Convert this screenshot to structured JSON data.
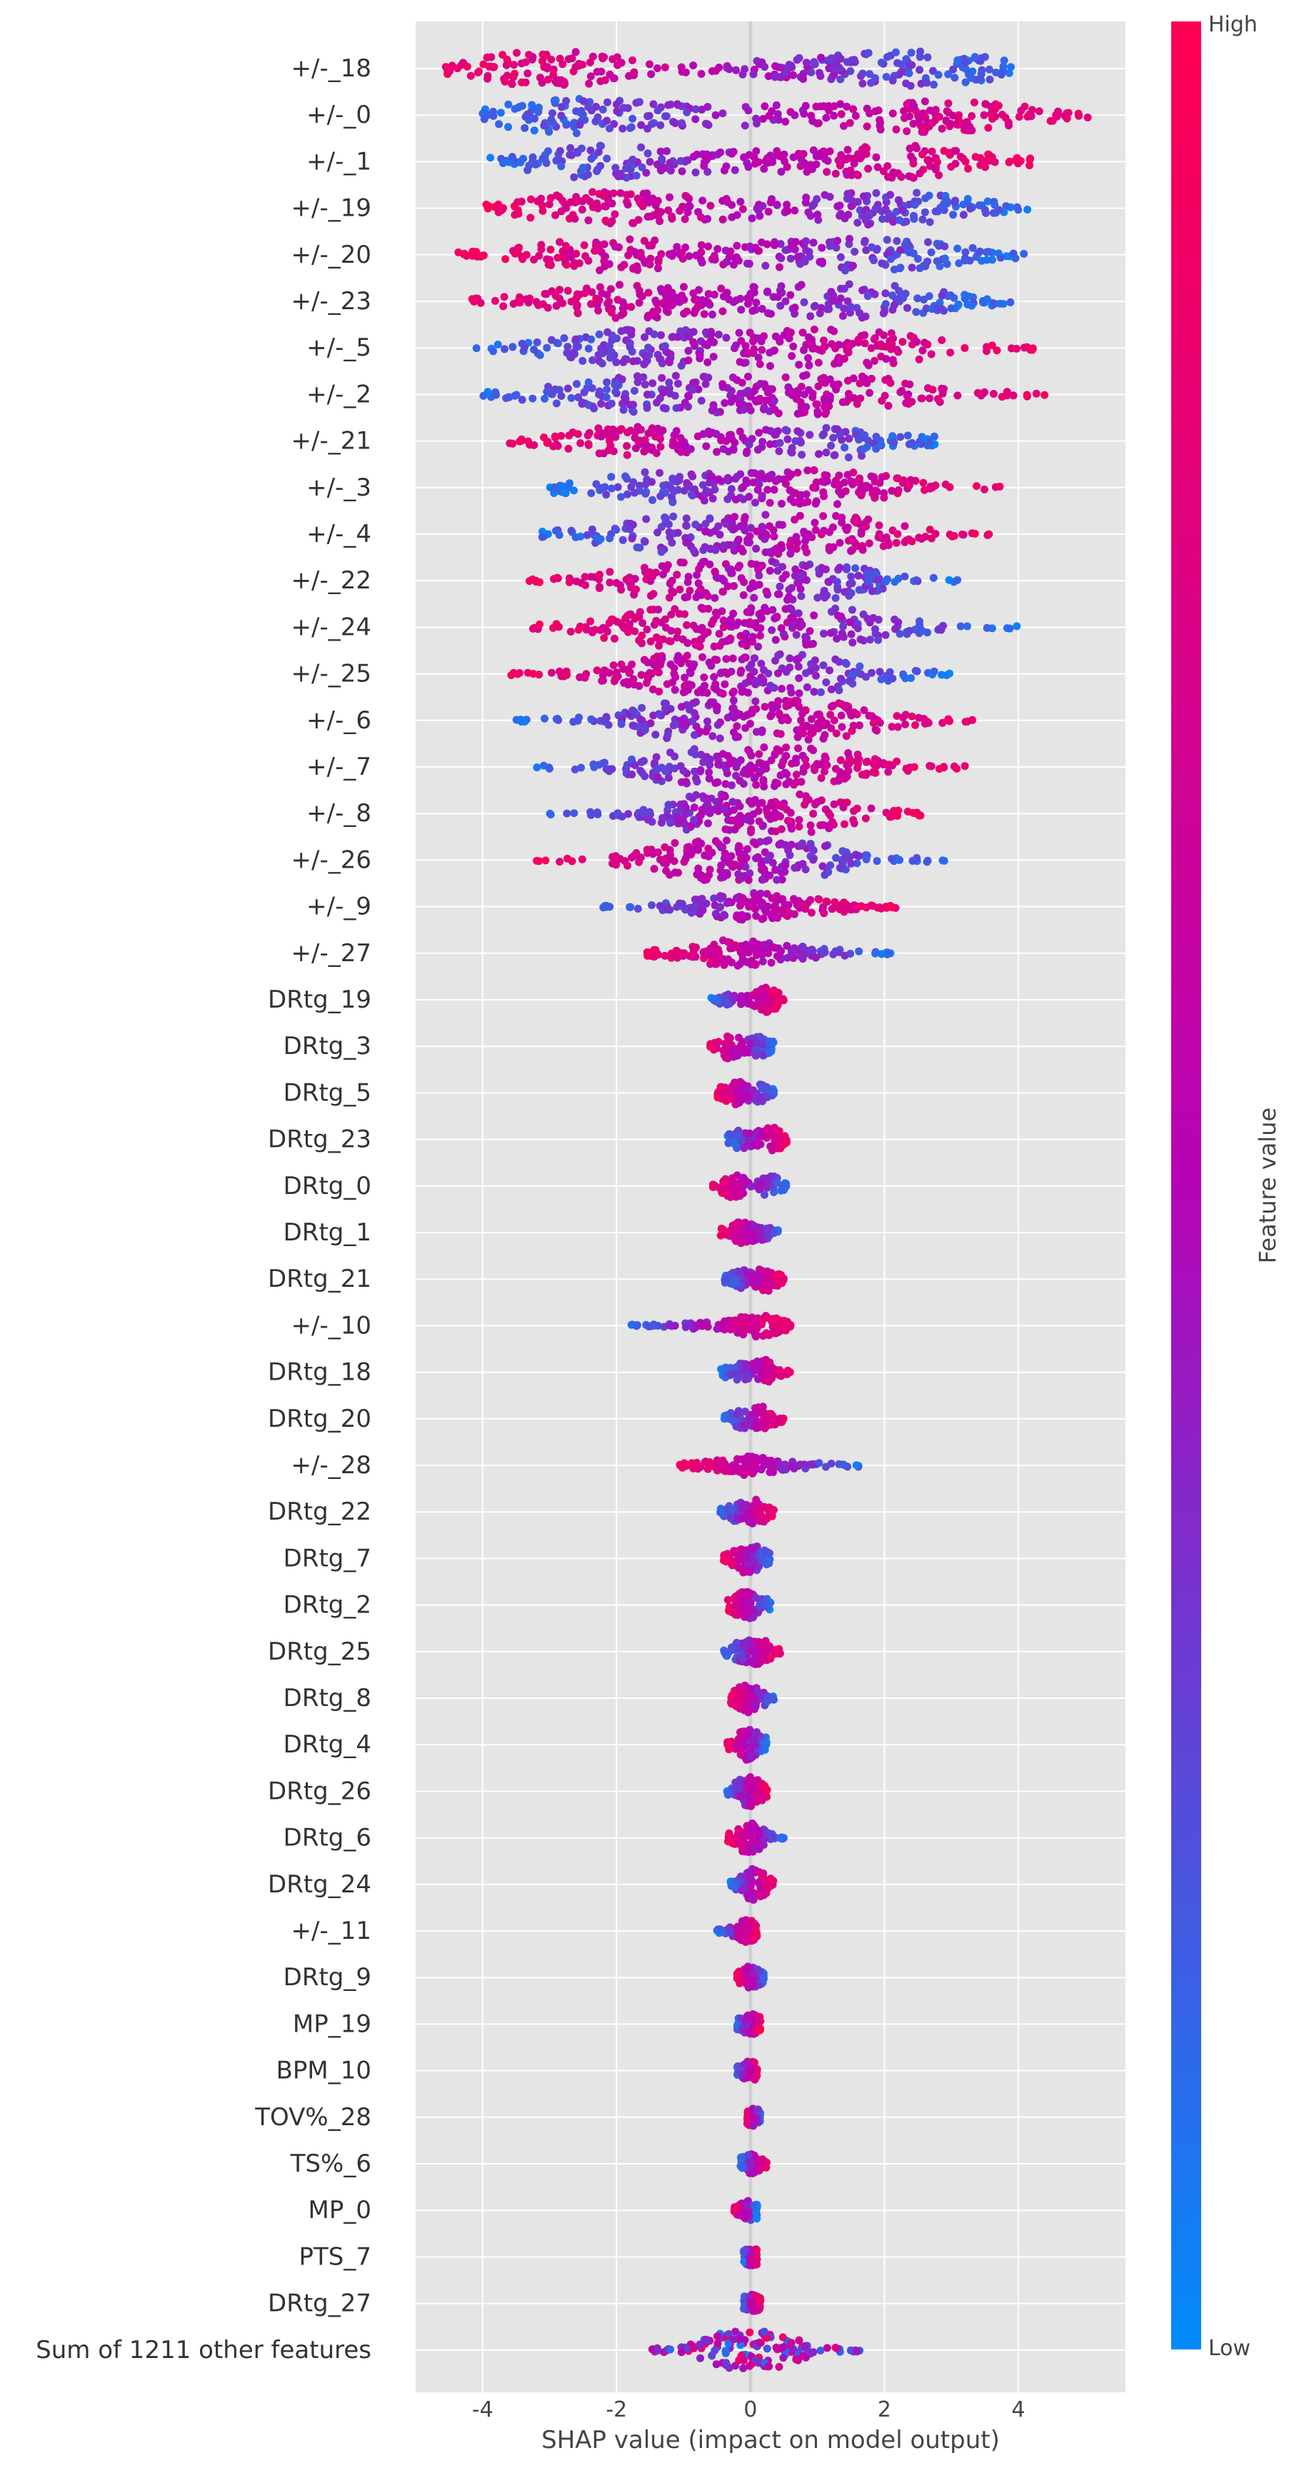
{
  "chart_data": {
    "type": "scatter",
    "subtype": "beeswarm",
    "title": "",
    "xlabel": "SHAP value (impact on model output)",
    "ylabel": "",
    "xlim": [
      -5.0,
      5.6
    ],
    "x_ticks": [
      -4,
      -2,
      0,
      2,
      4
    ],
    "x_tick_labels": [
      "-4",
      "-2",
      "0",
      "2",
      "4"
    ],
    "grid": true,
    "background": "#e5e5e5",
    "zero_line": true,
    "colorbar": {
      "label": "Feature value",
      "high_label": "High",
      "low_label": "Low",
      "high_color": "#ff0052",
      "mid_color": "#b603b6",
      "low_color": "#008bfb"
    },
    "features": [
      {
        "name": "+/-_18",
        "min": -4.6,
        "max": 4.1,
        "low_side": "right",
        "peaks": [
          [
            -3.0,
            0.9
          ],
          [
            2.6,
            0.85
          ],
          [
            0.5,
            0.35
          ]
        ]
      },
      {
        "name": "+/-_0",
        "min": -4.0,
        "max": 5.1,
        "low_side": "left",
        "peaks": [
          [
            -2.6,
            0.9
          ],
          [
            2.8,
            0.85
          ],
          [
            0.0,
            0.4
          ]
        ]
      },
      {
        "name": "+/-_1",
        "min": -3.9,
        "max": 4.2,
        "low_side": "left",
        "peaks": [
          [
            -2.3,
            0.8
          ],
          [
            2.3,
            0.8
          ],
          [
            0.0,
            0.4
          ]
        ]
      },
      {
        "name": "+/-_19",
        "min": -4.0,
        "max": 4.2,
        "low_side": "right",
        "peaks": [
          [
            -2.2,
            0.8
          ],
          [
            2.2,
            0.8
          ],
          [
            0.0,
            0.4
          ]
        ]
      },
      {
        "name": "+/-_20",
        "min": -4.4,
        "max": 4.1,
        "low_side": "right",
        "peaks": [
          [
            -2.2,
            0.75
          ],
          [
            2.0,
            0.75
          ],
          [
            0.0,
            0.4
          ]
        ]
      },
      {
        "name": "+/-_23",
        "min": -4.3,
        "max": 4.0,
        "low_side": "right",
        "peaks": [
          [
            -2.0,
            0.8
          ],
          [
            1.8,
            0.8
          ],
          [
            0.0,
            0.45
          ]
        ]
      },
      {
        "name": "+/-_5",
        "min": -4.1,
        "max": 4.3,
        "low_side": "left",
        "peaks": [
          [
            -1.8,
            0.8
          ],
          [
            1.6,
            0.8
          ],
          [
            0.0,
            0.5
          ]
        ]
      },
      {
        "name": "+/-_2",
        "min": -4.0,
        "max": 4.5,
        "low_side": "left",
        "peaks": [
          [
            -1.8,
            0.8
          ],
          [
            1.6,
            0.8
          ],
          [
            0.0,
            0.5
          ]
        ]
      },
      {
        "name": "+/-_21",
        "min": -3.6,
        "max": 2.8,
        "low_side": "right",
        "peaks": [
          [
            -1.9,
            0.7
          ],
          [
            1.5,
            0.75
          ],
          [
            0.0,
            0.45
          ]
        ]
      },
      {
        "name": "+/-_3",
        "min": -3.0,
        "max": 3.8,
        "low_side": "left",
        "peaks": [
          [
            -1.7,
            0.7
          ],
          [
            1.4,
            0.75
          ],
          [
            0.0,
            0.5
          ]
        ]
      },
      {
        "name": "+/-_4",
        "min": -3.2,
        "max": 3.6,
        "low_side": "left",
        "peaks": [
          [
            -1.4,
            0.75
          ],
          [
            1.3,
            0.8
          ],
          [
            0.0,
            0.55
          ]
        ]
      },
      {
        "name": "+/-_22",
        "min": -3.3,
        "max": 3.1,
        "low_side": "right",
        "peaks": [
          [
            -1.3,
            0.75
          ],
          [
            1.1,
            0.75
          ],
          [
            0.0,
            0.6
          ]
        ]
      },
      {
        "name": "+/-_24",
        "min": -3.3,
        "max": 4.1,
        "low_side": "right",
        "peaks": [
          [
            -1.3,
            0.8
          ],
          [
            1.2,
            0.8
          ],
          [
            0.0,
            0.6
          ]
        ]
      },
      {
        "name": "+/-_25",
        "min": -3.6,
        "max": 3.0,
        "low_side": "right",
        "peaks": [
          [
            -1.2,
            0.75
          ],
          [
            1.0,
            0.7
          ],
          [
            0.0,
            0.65
          ]
        ]
      },
      {
        "name": "+/-_6",
        "min": -3.6,
        "max": 3.4,
        "low_side": "left",
        "peaks": [
          [
            -1.0,
            0.7
          ],
          [
            1.0,
            0.8
          ],
          [
            0.0,
            0.65
          ]
        ]
      },
      {
        "name": "+/-_7",
        "min": -3.2,
        "max": 3.3,
        "low_side": "left",
        "peaks": [
          [
            -0.9,
            0.65
          ],
          [
            1.0,
            0.75
          ],
          [
            0.0,
            0.6
          ]
        ]
      },
      {
        "name": "+/-_8",
        "min": -3.0,
        "max": 2.6,
        "low_side": "left",
        "peaks": [
          [
            -0.7,
            0.6
          ],
          [
            0.9,
            0.65
          ],
          [
            0.0,
            0.7
          ]
        ]
      },
      {
        "name": "+/-_26",
        "min": -3.2,
        "max": 2.9,
        "low_side": "right",
        "peaks": [
          [
            -0.8,
            0.7
          ],
          [
            0.8,
            0.6
          ],
          [
            0.0,
            0.65
          ]
        ]
      },
      {
        "name": "+/-_9",
        "min": -2.3,
        "max": 2.2,
        "low_side": "left",
        "peaks": [
          [
            0.1,
            0.6
          ],
          [
            -0.8,
            0.18
          ],
          [
            1.2,
            0.2
          ]
        ]
      },
      {
        "name": "+/-_27",
        "min": -1.6,
        "max": 2.1,
        "low_side": "right",
        "peaks": [
          [
            -0.2,
            0.6
          ],
          [
            0.8,
            0.25
          ],
          [
            -1.0,
            0.2
          ]
        ]
      },
      {
        "name": "DRtg_19",
        "min": -0.6,
        "max": 0.5,
        "low_side": "left",
        "peaks": [
          [
            0.25,
            0.6
          ],
          [
            -0.3,
            0.25
          ]
        ]
      },
      {
        "name": "DRtg_3",
        "min": -0.6,
        "max": 0.35,
        "low_side": "right",
        "peaks": [
          [
            -0.3,
            0.6
          ],
          [
            0.15,
            0.45
          ]
        ]
      },
      {
        "name": "DRtg_5",
        "min": -0.5,
        "max": 0.35,
        "low_side": "right",
        "peaks": [
          [
            -0.25,
            0.6
          ],
          [
            0.15,
            0.4
          ]
        ]
      },
      {
        "name": "DRtg_23",
        "min": -0.35,
        "max": 0.55,
        "low_side": "left",
        "peaks": [
          [
            0.3,
            0.65
          ],
          [
            -0.15,
            0.45
          ]
        ]
      },
      {
        "name": "DRtg_0",
        "min": -0.6,
        "max": 0.55,
        "low_side": "right",
        "peaks": [
          [
            -0.25,
            0.6
          ],
          [
            0.3,
            0.5
          ]
        ]
      },
      {
        "name": "DRtg_1",
        "min": -0.45,
        "max": 0.45,
        "low_side": "right",
        "peaks": [
          [
            -0.2,
            0.5
          ],
          [
            0.15,
            0.35
          ]
        ]
      },
      {
        "name": "DRtg_21",
        "min": -0.4,
        "max": 0.5,
        "low_side": "left",
        "peaks": [
          [
            0.25,
            0.55
          ],
          [
            -0.15,
            0.4
          ]
        ]
      },
      {
        "name": "+/-_10",
        "min": -1.8,
        "max": 0.6,
        "low_side": "left",
        "peaks": [
          [
            0.1,
            0.55
          ],
          [
            -0.8,
            0.1
          ]
        ]
      },
      {
        "name": "DRtg_18",
        "min": -0.45,
        "max": 0.6,
        "low_side": "left",
        "peaks": [
          [
            0.2,
            0.6
          ],
          [
            -0.2,
            0.4
          ]
        ]
      },
      {
        "name": "DRtg_20",
        "min": -0.4,
        "max": 0.5,
        "low_side": "left",
        "peaks": [
          [
            0.2,
            0.55
          ],
          [
            -0.15,
            0.4
          ]
        ]
      },
      {
        "name": "+/-_28",
        "min": -1.1,
        "max": 1.65,
        "low_side": "right",
        "peaks": [
          [
            0.0,
            0.45
          ],
          [
            0.8,
            0.08
          ],
          [
            -0.6,
            0.1
          ]
        ]
      },
      {
        "name": "DRtg_22",
        "min": -0.45,
        "max": 0.35,
        "low_side": "left",
        "peaks": [
          [
            0.1,
            0.55
          ],
          [
            -0.2,
            0.4
          ]
        ]
      },
      {
        "name": "DRtg_7",
        "min": -0.4,
        "max": 0.3,
        "low_side": "right",
        "peaks": [
          [
            -0.15,
            0.55
          ],
          [
            0.1,
            0.45
          ]
        ]
      },
      {
        "name": "DRtg_2",
        "min": -0.35,
        "max": 0.3,
        "low_side": "right",
        "peaks": [
          [
            -0.15,
            0.5
          ],
          [
            0.1,
            0.4
          ]
        ]
      },
      {
        "name": "DRtg_25",
        "min": -0.4,
        "max": 0.45,
        "low_side": "left",
        "peaks": [
          [
            0.15,
            0.55
          ],
          [
            -0.15,
            0.4
          ]
        ]
      },
      {
        "name": "DRtg_8",
        "min": -0.3,
        "max": 0.35,
        "low_side": "right",
        "peaks": [
          [
            -0.1,
            0.5
          ],
          [
            0.1,
            0.35
          ]
        ]
      },
      {
        "name": "DRtg_4",
        "min": -0.35,
        "max": 0.25,
        "low_side": "right",
        "peaks": [
          [
            -0.1,
            0.55
          ],
          [
            0.1,
            0.4
          ]
        ]
      },
      {
        "name": "DRtg_26",
        "min": -0.35,
        "max": 0.25,
        "low_side": "left",
        "peaks": [
          [
            0.05,
            0.55
          ],
          [
            -0.15,
            0.35
          ]
        ]
      },
      {
        "name": "DRtg_6",
        "min": -0.35,
        "max": 0.5,
        "low_side": "right",
        "peaks": [
          [
            -0.1,
            0.55
          ],
          [
            0.1,
            0.4
          ]
        ]
      },
      {
        "name": "DRtg_24",
        "min": -0.3,
        "max": 0.35,
        "low_side": "left",
        "peaks": [
          [
            0.0,
            0.55
          ],
          [
            0.15,
            0.3
          ]
        ]
      },
      {
        "name": "+/-_11",
        "min": -0.5,
        "max": 0.1,
        "low_side": "left",
        "peaks": [
          [
            0.0,
            0.5
          ],
          [
            -0.25,
            0.15
          ]
        ]
      },
      {
        "name": "DRtg_9",
        "min": -0.2,
        "max": 0.2,
        "low_side": "right",
        "peaks": [
          [
            0.0,
            0.55
          ]
        ]
      },
      {
        "name": "MP_19",
        "min": -0.2,
        "max": 0.15,
        "low_side": "left",
        "peaks": [
          [
            0.0,
            0.5
          ]
        ]
      },
      {
        "name": "BPM_10",
        "min": -0.2,
        "max": 0.1,
        "low_side": "left",
        "peaks": [
          [
            0.0,
            0.45
          ]
        ]
      },
      {
        "name": "TOV%_28",
        "min": -0.05,
        "max": 0.15,
        "low_side": "right",
        "peaks": [
          [
            0.05,
            0.4
          ]
        ]
      },
      {
        "name": "TS%_6",
        "min": -0.15,
        "max": 0.25,
        "low_side": "left",
        "peaks": [
          [
            0.0,
            0.45
          ]
        ]
      },
      {
        "name": "MP_0",
        "min": -0.25,
        "max": 0.1,
        "low_side": "right",
        "peaks": [
          [
            0.0,
            0.45
          ]
        ]
      },
      {
        "name": "PTS_7",
        "min": -0.1,
        "max": 0.1,
        "low_side": "left",
        "peaks": [
          [
            0.0,
            0.4
          ]
        ]
      },
      {
        "name": "DRtg_27",
        "min": -0.1,
        "max": 0.15,
        "low_side": "left",
        "peaks": [
          [
            0.0,
            0.4
          ]
        ]
      },
      {
        "name": "Sum of 1211 other features",
        "min": -1.5,
        "max": 1.7,
        "low_side": "mixed",
        "peaks": [
          [
            0.0,
            0.8
          ],
          [
            -0.5,
            0.4
          ],
          [
            0.5,
            0.4
          ]
        ]
      }
    ]
  }
}
